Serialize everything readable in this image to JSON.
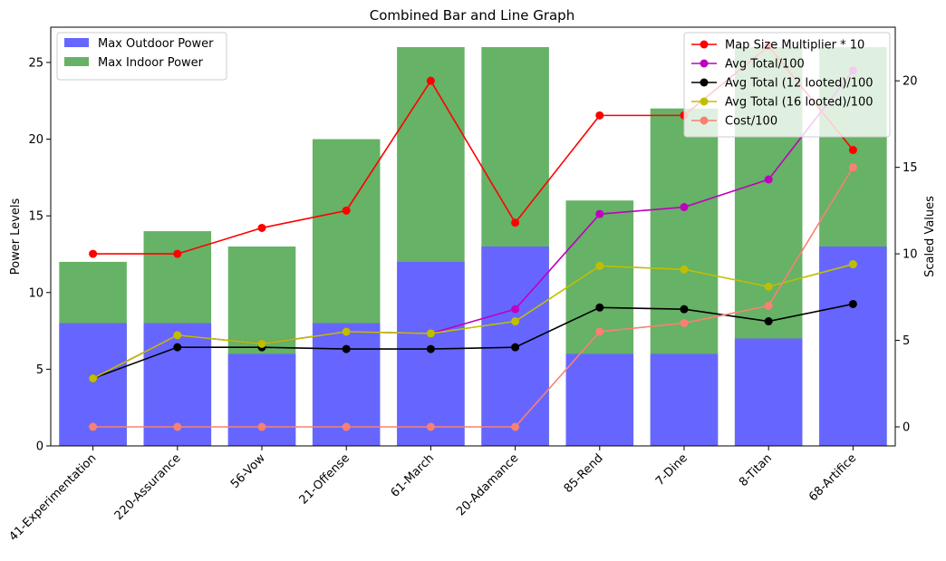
{
  "chart_data": {
    "type": "bar+line",
    "title": "Combined Bar and Line Graph",
    "categories": [
      "41-Experimentation",
      "220-Assurance",
      "56-Vow",
      "21-Offense",
      "61-March",
      "20-Adamance",
      "85-Rend",
      "7-Dine",
      "8-Titan",
      "68-Artifice"
    ],
    "y_left": {
      "label": "Power Levels",
      "lim": [
        0,
        27.3
      ],
      "ticks": [
        0,
        5,
        10,
        15,
        20,
        25
      ]
    },
    "y_right": {
      "label": "Scaled Values",
      "lim": [
        -1.1,
        23.1
      ],
      "ticks": [
        0,
        5,
        10,
        15,
        20
      ]
    },
    "bar_series": [
      {
        "name": "Max Indoor Power",
        "color": "#66b266",
        "values": [
          12,
          14,
          13,
          20,
          26,
          26,
          16,
          22,
          26,
          26
        ]
      },
      {
        "name": "Max Outdoor Power",
        "color": "#6666ff",
        "values": [
          8,
          8,
          6,
          8,
          12,
          13,
          6,
          6,
          7,
          13
        ]
      }
    ],
    "line_series": [
      {
        "name": "Map Size Multiplier * 10",
        "color": "#ff0000",
        "values": [
          10,
          10,
          11.5,
          12.5,
          20,
          11.8,
          18,
          18,
          22,
          16
        ]
      },
      {
        "name": "Avg Total/100",
        "color": "#bf00bf",
        "values": [
          2.8,
          5.3,
          4.8,
          5.5,
          5.4,
          6.8,
          12.3,
          12.7,
          14.3,
          20.6
        ]
      },
      {
        "name": "Avg Total (12 looted)/100",
        "color": "#000000",
        "values": [
          2.8,
          4.6,
          4.6,
          4.5,
          4.5,
          4.6,
          6.9,
          6.8,
          6.1,
          7.1
        ]
      },
      {
        "name": "Avg Total (16 looted)/100",
        "color": "#bfbf00",
        "values": [
          2.8,
          5.3,
          4.8,
          5.5,
          5.4,
          6.1,
          9.3,
          9.1,
          8.1,
          9.4
        ]
      },
      {
        "name": "Cost/100",
        "color": "#fa8072",
        "values": [
          0,
          0,
          0,
          0,
          0,
          0,
          5.5,
          6,
          7,
          15
        ]
      }
    ],
    "legend_left": {
      "placement": "upper-left",
      "entries": [
        {
          "name": "Max Outdoor Power",
          "color": "#6666ff"
        },
        {
          "name": "Max Indoor Power",
          "color": "#66b266"
        }
      ]
    },
    "legend_right": {
      "placement": "upper-right",
      "entries": [
        {
          "name": "Map Size Multiplier * 10",
          "color": "#ff0000"
        },
        {
          "name": "Avg Total/100",
          "color": "#bf00bf"
        },
        {
          "name": "Avg Total (12 looted)/100",
          "color": "#000000"
        },
        {
          "name": "Avg Total (16 looted)/100",
          "color": "#bfbf00"
        },
        {
          "name": "Cost/100",
          "color": "#fa8072"
        }
      ]
    },
    "grid": false
  }
}
